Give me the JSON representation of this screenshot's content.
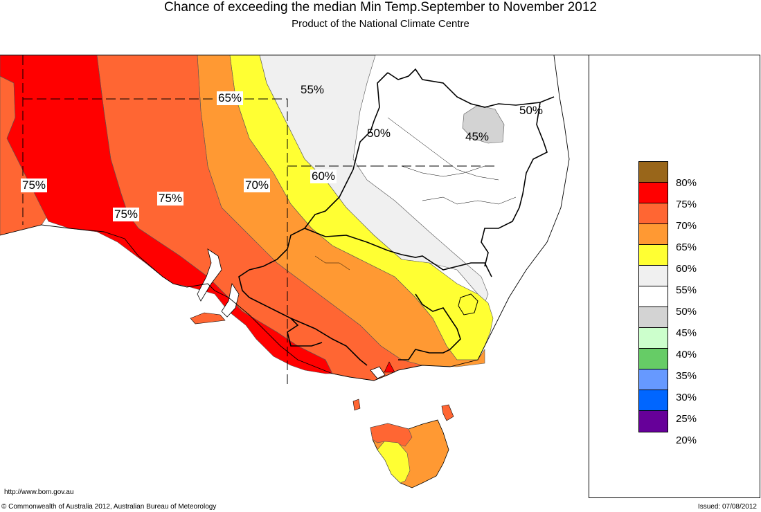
{
  "header": {
    "title": "Chance of exceeding the median Min Temp.September to November 2012",
    "subtitle": "Product of the National Climate Centre"
  },
  "colors": {
    "c80": "#99661a",
    "c75": "#ff0000",
    "c70": "#ff6633",
    "c65": "#ff9933",
    "c60": "#ffff33",
    "c55": "#f0f0f0",
    "c50": "#ffffff",
    "c45": "#d3d3d3",
    "c40": "#ccffcc",
    "c35": "#66cc66",
    "c30": "#6699ff",
    "c25": "#0066ff",
    "c20": "#660099"
  },
  "legend": {
    "items": [
      {
        "label": "80%",
        "color": "#99661a"
      },
      {
        "label": "75%",
        "color": "#ff0000"
      },
      {
        "label": "70%",
        "color": "#ff6633"
      },
      {
        "label": "65%",
        "color": "#ff9933"
      },
      {
        "label": "60%",
        "color": "#ffff33"
      },
      {
        "label": "55%",
        "color": "#f0f0f0"
      },
      {
        "label": "50%",
        "color": "#ffffff"
      },
      {
        "label": "45%",
        "color": "#d3d3d3"
      },
      {
        "label": "40%",
        "color": "#ccffcc"
      },
      {
        "label": "35%",
        "color": "#66cc66"
      },
      {
        "label": "30%",
        "color": "#6699ff"
      },
      {
        "label": "25%",
        "color": "#0066ff"
      },
      {
        "label": "20%",
        "color": "#660099"
      }
    ]
  },
  "map_labels": {
    "l1": "65%",
    "l2": "55%",
    "l3": "50%",
    "l4": "45%",
    "l5": "50%",
    "l6": "60%",
    "l7": "70%",
    "l8": "75%",
    "l9": "75%",
    "l10": "75%"
  },
  "footer": {
    "url": "http://www.bom.gov.au",
    "copyright": "© Commonwealth of Australia 2012, Australian Bureau of Meteorology",
    "issued": "Issued: 07/08/2012"
  }
}
